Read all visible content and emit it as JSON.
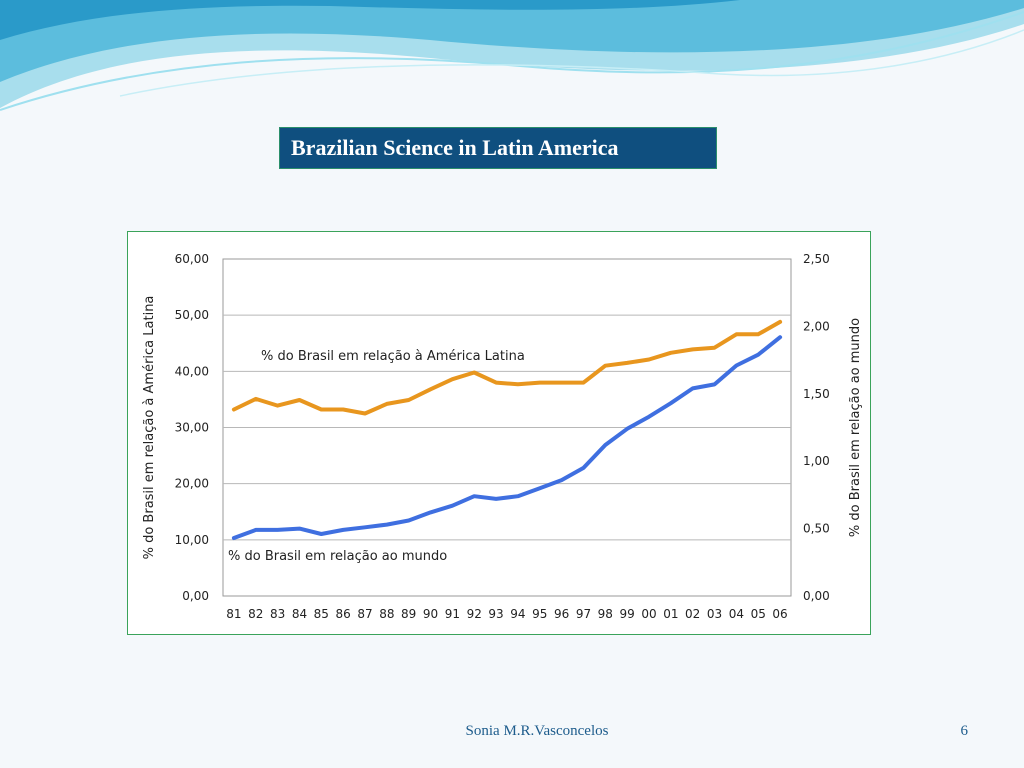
{
  "slide": {
    "title": "Brazilian Science in Latin America",
    "author": "Sonia M.R.Vasconcelos",
    "page_number": "6"
  },
  "colors": {
    "title_bg": "#0f4f7f",
    "latin_america_series": "#e8961e",
    "world_series": "#3f6fe0",
    "frame_border": "#3aa35a"
  },
  "chart_data": {
    "type": "line",
    "x": [
      "81",
      "82",
      "83",
      "84",
      "85",
      "86",
      "87",
      "88",
      "89",
      "90",
      "91",
      "92",
      "93",
      "94",
      "95",
      "96",
      "97",
      "98",
      "99",
      "00",
      "01",
      "02",
      "03",
      "04",
      "05",
      "06"
    ],
    "y_left_label": "% do Brasil em relação à América Latina",
    "y_right_label": "% do Brasil em relação ao mundo",
    "y_left_range": [
      0,
      60
    ],
    "y_right_range": [
      0,
      2.5
    ],
    "y_left_ticks": [
      "0,00",
      "10,00",
      "20,00",
      "30,00",
      "40,00",
      "50,00",
      "60,00"
    ],
    "y_right_ticks": [
      "0,00",
      "0,50",
      "1,00",
      "1,50",
      "2,00",
      "2,50"
    ],
    "grid": true,
    "series": [
      {
        "name": "% do Brasil em relação à América Latina",
        "axis": "left",
        "color": "#e8961e",
        "values": [
          33.2,
          35.1,
          33.9,
          34.9,
          33.2,
          33.2,
          32.5,
          34.2,
          34.9,
          36.8,
          38.6,
          39.8,
          38.0,
          37.7,
          38.0,
          38.0,
          38.0,
          41.0,
          41.5,
          42.1,
          43.3,
          43.9,
          44.2,
          46.6,
          46.6,
          48.8
        ]
      },
      {
        "name": "% do Brasil em relação ao mundo",
        "axis": "right",
        "color": "#3f6fe0",
        "values": [
          0.43,
          0.49,
          0.49,
          0.5,
          0.46,
          0.49,
          0.51,
          0.53,
          0.56,
          0.62,
          0.67,
          0.74,
          0.72,
          0.74,
          0.8,
          0.86,
          0.95,
          1.12,
          1.24,
          1.33,
          1.43,
          1.54,
          1.57,
          1.71,
          1.79,
          1.92
        ]
      }
    ]
  }
}
